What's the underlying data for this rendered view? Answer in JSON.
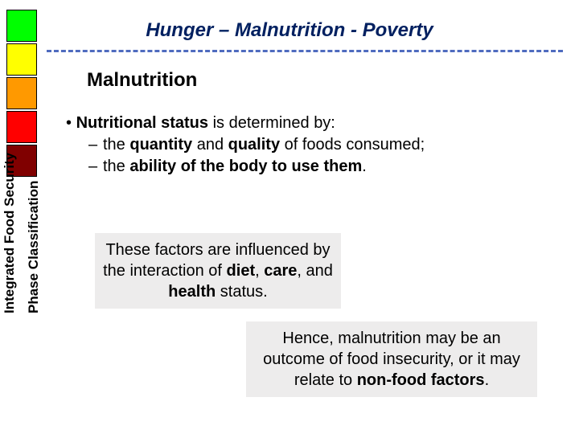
{
  "title": "Hunger – Malnutrition - Poverty",
  "title_color": "#002060",
  "title_fontsize": 24,
  "dashed_line_color": "#4f6bbf",
  "color_boxes": [
    "#00ff00",
    "#ffff00",
    "#ff9900",
    "#ff0000",
    "#800000"
  ],
  "box_border_color": "#000000",
  "subtitle": "Malnutrition",
  "subtitle_fontsize": 24,
  "bullet": {
    "lead_prefix": "•  ",
    "lead_bold": "Nutritional status",
    "lead_rest": " is determined by:",
    "sub": [
      {
        "dash": "–",
        "parts": [
          "the ",
          {
            "b": "quantity"
          },
          " and ",
          {
            "b": "quality"
          },
          " of foods consumed;"
        ]
      },
      {
        "dash": "–",
        "parts": [
          "the ",
          {
            "b": "ability of the body to use them"
          },
          "."
        ]
      }
    ],
    "fontsize": 20
  },
  "callout1": {
    "parts": [
      "These factors are influenced by the interaction of ",
      {
        "b": "diet"
      },
      ", ",
      {
        "b": "care"
      },
      ", and ",
      {
        "b": "health"
      },
      " status."
    ],
    "bg": "#edecec",
    "fontsize": 20
  },
  "callout2": {
    "parts": [
      "Hence, malnutrition may be an outcome of food insecurity, or it may relate to ",
      {
        "b": "non-food factors"
      },
      "."
    ],
    "bg": "#edecec",
    "fontsize": 20
  },
  "vertical_label_outer": "Integrated Food Security",
  "vertical_label_inner": "Phase Classification",
  "vertical_fontsize": 17,
  "background_color": "#ffffff"
}
